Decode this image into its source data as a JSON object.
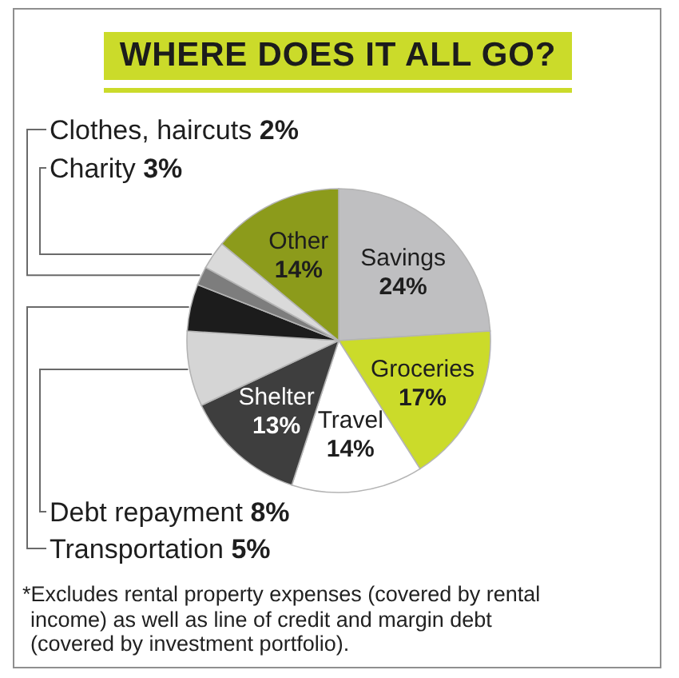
{
  "chart_data": {
    "type": "pie",
    "title": "WHERE DOES IT ALL GO?",
    "categories": [
      "Savings",
      "Groceries",
      "Travel",
      "Shelter",
      "Debt repayment",
      "Transportation",
      "Clothes, haircuts",
      "Charity",
      "Other"
    ],
    "values": [
      24,
      17,
      14,
      13,
      8,
      5,
      2,
      3,
      14
    ],
    "colors": [
      "#bfbfc1",
      "#cbdb2a",
      "#ffffff",
      "#3e3e3e",
      "#d5d5d5",
      "#1c1c1c",
      "#7d7d7d",
      "#dadada",
      "#8c9b1b"
    ],
    "value_labels": [
      "24%",
      "17%",
      "14%",
      "13%",
      "8%",
      "5%",
      "2%",
      "3%",
      "14%"
    ],
    "annotations": [
      "*Excludes rental property expenses (covered by rental income) as well as line of credit and margin debt (covered by investment portfolio)."
    ]
  }
}
